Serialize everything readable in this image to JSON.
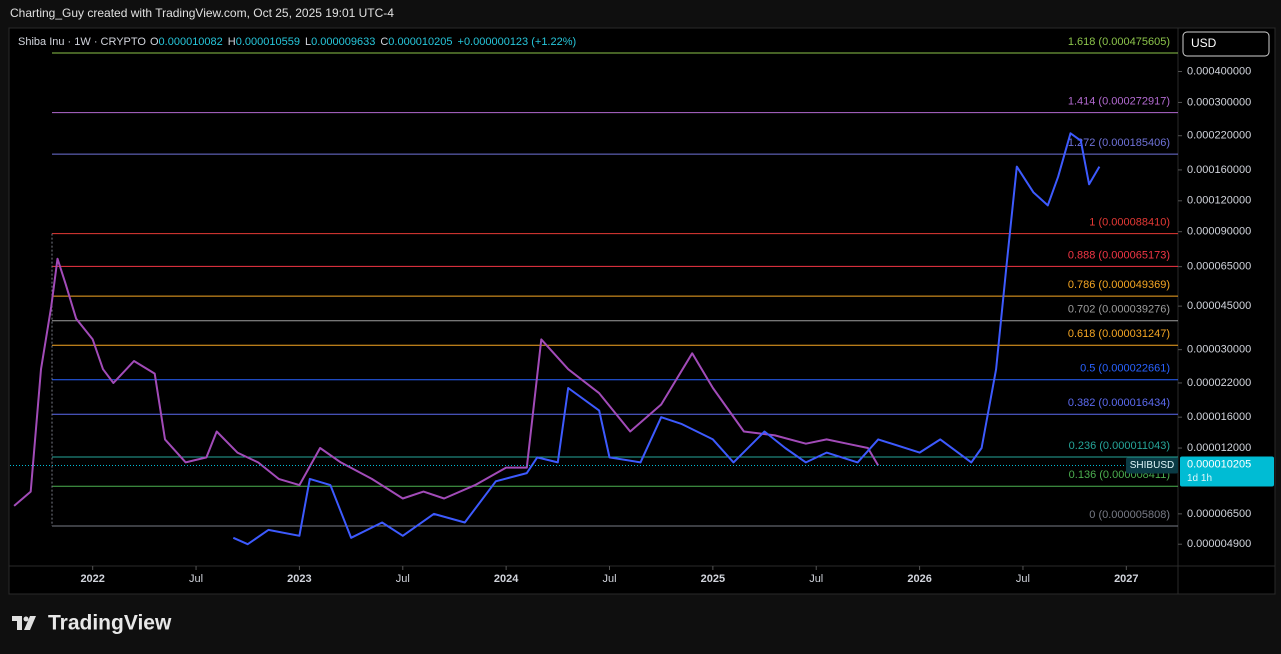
{
  "header": {
    "credit": "Charting_Guy created with TradingView.com, Oct 25, 2025 19:01 UTC-4"
  },
  "footer": {
    "brand": "TradingView"
  },
  "chart_data": {
    "type": "line",
    "symbol": "Shiba Inu · 1W · CRYPTO",
    "ohlc": [
      {
        "label": "O",
        "value": "0.000010082"
      },
      {
        "label": "H",
        "value": "0.000010559"
      },
      {
        "label": "L",
        "value": "0.000009633"
      },
      {
        "label": "C",
        "value": "0.000010205"
      }
    ],
    "change": "+0.000000123 (+1.22%)",
    "currency": "USD",
    "price_badge": {
      "ticker": "SHIBUSD",
      "value": "0.000010205",
      "countdown": "1d 1h",
      "color": "#00bcd4"
    },
    "log_scale": true,
    "xlim": [
      2021.6,
      2027.25
    ],
    "xticks": [
      2022,
      {
        "value": 2022.5,
        "label": "Jul"
      },
      2023,
      {
        "value": 2023.5,
        "label": "Jul"
      },
      2024,
      {
        "value": 2024.5,
        "label": "Jul"
      },
      2025,
      {
        "value": 2025.5,
        "label": "Jul"
      },
      2026,
      {
        "value": 2026.5,
        "label": "Jul"
      },
      2027
    ],
    "ylim": [
      4e-06,
      0.0006
    ],
    "yticks": [
      {
        "value": 0.0004,
        "label": "0.000400000"
      },
      {
        "value": 0.0003,
        "label": "0.000300000"
      },
      {
        "value": 0.00022,
        "label": "0.000220000"
      },
      {
        "value": 0.00016,
        "label": "0.000160000"
      },
      {
        "value": 0.00012,
        "label": "0.000120000"
      },
      {
        "value": 9e-05,
        "label": "0.000090000"
      },
      {
        "value": 6.5e-05,
        "label": "0.000065000"
      },
      {
        "value": 4.5e-05,
        "label": "0.000045000"
      },
      {
        "value": 3e-05,
        "label": "0.000030000"
      },
      {
        "value": 2.2e-05,
        "label": "0.000022000"
      },
      {
        "value": 1.6e-05,
        "label": "0.000016000"
      },
      {
        "value": 1.2e-05,
        "label": "0.000012000"
      },
      {
        "value": 6.5e-06,
        "label": "0.000006500"
      },
      {
        "value": 4.9e-06,
        "label": "0.000004900"
      }
    ],
    "fib_levels": [
      {
        "label": "1.618 (0.000475605)",
        "value": 0.000475605,
        "color": "#8bc34a"
      },
      {
        "label": "1.414 (0.000272917)",
        "value": 0.000272917,
        "color": "#b36ad1"
      },
      {
        "label": "1.272 (0.000185406)",
        "value": 0.000185406,
        "color": "#6f73d9"
      },
      {
        "label": "1 (0.000088410)",
        "value": 8.841e-05,
        "color": "#e53935"
      },
      {
        "label": "0.888 (0.000065173)",
        "value": 6.5173e-05,
        "color": "#f23645"
      },
      {
        "label": "0.786 (0.000049369)",
        "value": 4.9369e-05,
        "color": "#f5a623"
      },
      {
        "label": "0.702 (0.000039276)",
        "value": 3.9276e-05,
        "color": "#9e9e9e"
      },
      {
        "label": "0.618 (0.000031247)",
        "value": 3.1247e-05,
        "color": "#f5a623"
      },
      {
        "label": "0.5 (0.000022661)",
        "value": 2.2661e-05,
        "color": "#2962ff"
      },
      {
        "label": "0.382 (0.000016434)",
        "value": 1.6434e-05,
        "color": "#5c6bf0"
      },
      {
        "label": "0.236 (0.000011043)",
        "value": 1.1043e-05,
        "color": "#26a69a"
      },
      {
        "label": "0.136 (0.000008411)",
        "value": 8.411e-06,
        "color": "#4caf50"
      },
      {
        "label": "0 (0.000005808)",
        "value": 5.808e-06,
        "color": "#787b86"
      }
    ],
    "series": [
      {
        "name": "SHIBUSD",
        "color": "#a24bb8",
        "x": [
          2021.62,
          2021.7,
          2021.75,
          2021.8,
          2021.83,
          2021.87,
          2021.92,
          2022.0,
          2022.05,
          2022.1,
          2022.2,
          2022.3,
          2022.35,
          2022.45,
          2022.55,
          2022.6,
          2022.7,
          2022.8,
          2022.9,
          2023.0,
          2023.1,
          2023.2,
          2023.35,
          2023.5,
          2023.6,
          2023.7,
          2023.85,
          2024.0,
          2024.1,
          2024.17,
          2024.3,
          2024.45,
          2024.6,
          2024.75,
          2024.9,
          2025.0,
          2025.15,
          2025.3,
          2025.45,
          2025.55,
          2025.65,
          2025.75,
          2025.8
        ],
        "values": [
          7e-06,
          8e-06,
          2.5e-05,
          4.5e-05,
          7e-05,
          5.5e-05,
          4e-05,
          3.3e-05,
          2.5e-05,
          2.2e-05,
          2.7e-05,
          2.4e-05,
          1.3e-05,
          1.05e-05,
          1.1e-05,
          1.4e-05,
          1.15e-05,
          1.05e-05,
          9e-06,
          8.5e-06,
          1.2e-05,
          1.05e-05,
          9e-06,
          7.5e-06,
          8e-06,
          7.5e-06,
          8.5e-06,
          1e-05,
          1e-05,
          3.3e-05,
          2.5e-05,
          2e-05,
          1.4e-05,
          1.8e-05,
          2.9e-05,
          2.1e-05,
          1.4e-05,
          1.35e-05,
          1.25e-05,
          1.3e-05,
          1.25e-05,
          1.2e-05,
          1.02e-05
        ]
      },
      {
        "color": "#3d5afe",
        "x": [
          2022.68,
          2022.75,
          2022.85,
          2023.0,
          2023.05,
          2023.15,
          2023.25,
          2023.4,
          2023.5,
          2023.65,
          2023.8,
          2023.95,
          2024.1,
          2024.15,
          2024.25,
          2024.3,
          2024.45,
          2024.5,
          2024.65,
          2024.75,
          2024.85,
          2025.0,
          2025.1,
          2025.25,
          2025.35,
          2025.45,
          2025.55,
          2025.7,
          2025.8,
          2026.0,
          2026.1,
          2026.25,
          2026.3,
          2026.37,
          2026.42,
          2026.47,
          2026.55,
          2026.62,
          2026.67,
          2026.73,
          2026.78,
          2026.82,
          2026.87
        ],
        "values": [
          5.2e-06,
          4.9e-06,
          5.6e-06,
          5.3e-06,
          9e-06,
          8.5e-06,
          5.2e-06,
          6e-06,
          5.3e-06,
          6.5e-06,
          6e-06,
          8.8e-06,
          9.5e-06,
          1.1e-05,
          1.05e-05,
          2.1e-05,
          1.7e-05,
          1.1e-05,
          1.05e-05,
          1.6e-05,
          1.5e-05,
          1.3e-05,
          1.05e-05,
          1.4e-05,
          1.2e-05,
          1.05e-05,
          1.15e-05,
          1.05e-05,
          1.3e-05,
          1.15e-05,
          1.3e-05,
          1.05e-05,
          1.2e-05,
          2.5e-05,
          6.5e-05,
          0.000165,
          0.00013,
          0.000115,
          0.00015,
          0.000225,
          0.00021,
          0.00014,
          0.000165
        ]
      }
    ]
  }
}
